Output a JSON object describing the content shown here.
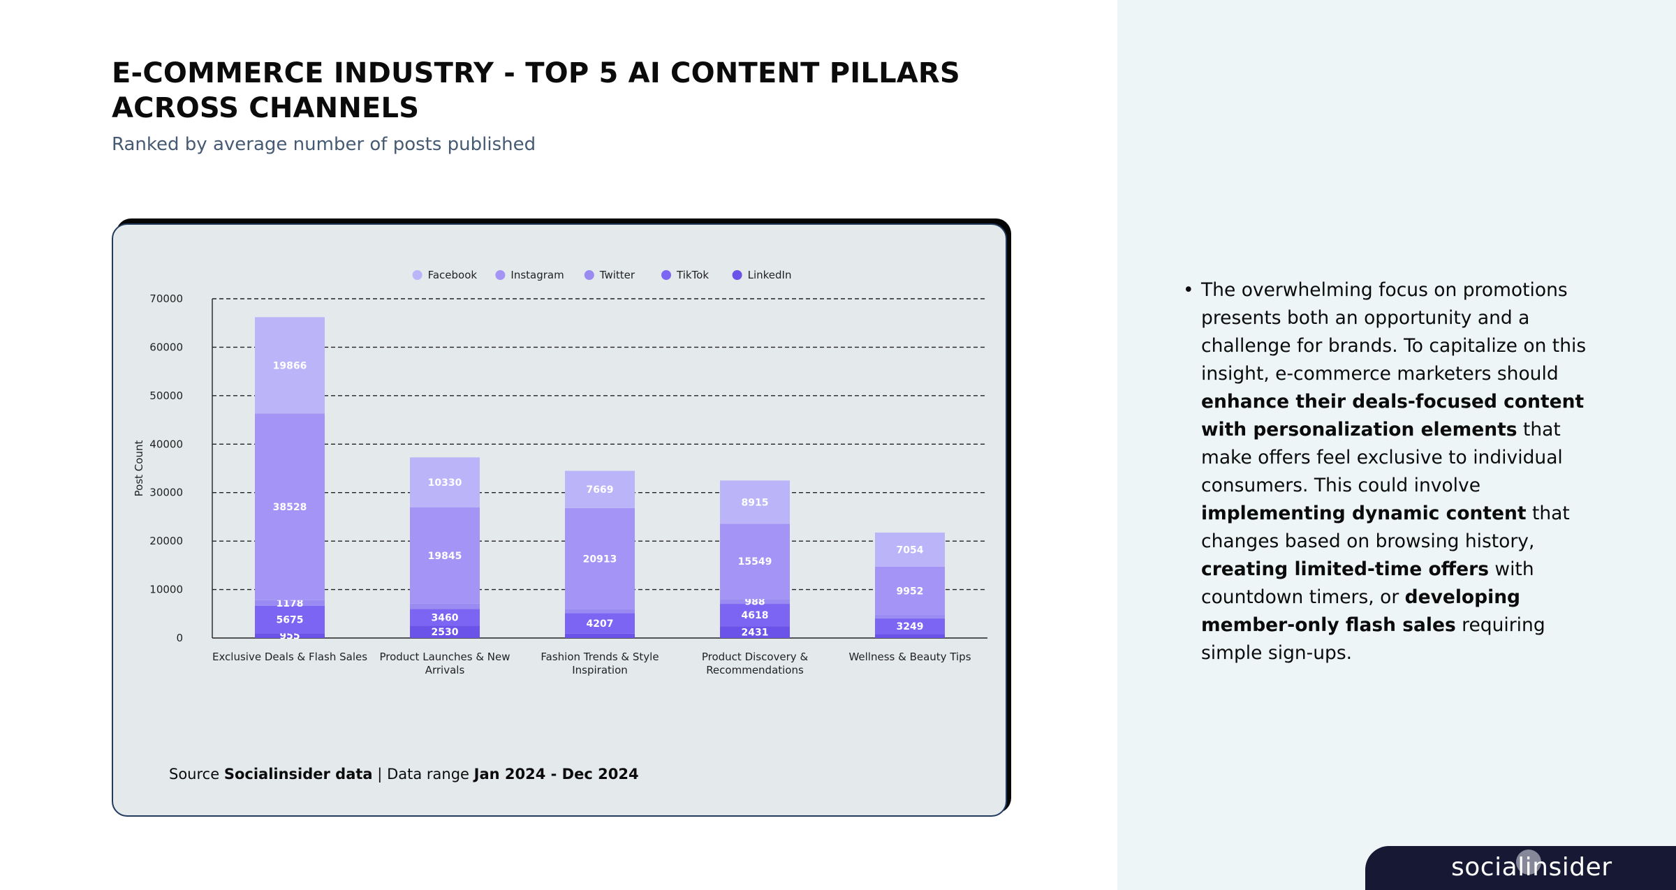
{
  "page": {
    "title": "E-COMMERCE INDUSTRY - TOP 5 AI CONTENT PILLARS ACROSS CHANNELS",
    "subtitle": "Ranked by average number of posts published"
  },
  "source": {
    "label": "Source",
    "name": "Socialinsider data",
    "separator": "|",
    "range_label": "Data range",
    "range": "Jan 2024 - Dec 2024"
  },
  "insight": {
    "bullet": "•",
    "parts": [
      {
        "text": "The overwhelming focus on promotions presents both an opportunity and a challenge for brands. To capitalize on this insight, e-commerce marketers should ",
        "bold": false
      },
      {
        "text": "enhance their deals-focused content with personalization elements",
        "bold": true
      },
      {
        "text": " that make offers feel exclusive to individual consumers. This could involve ",
        "bold": false
      },
      {
        "text": "implementing dynamic content",
        "bold": true
      },
      {
        "text": " that changes based on browsing history, ",
        "bold": false
      },
      {
        "text": "creating limited-time offers",
        "bold": true
      },
      {
        "text": " with countdown timers, or ",
        "bold": false
      },
      {
        "text": "developing member-only flash sales",
        "bold": true
      },
      {
        "text": " requiring simple sign-ups.",
        "bold": false
      }
    ]
  },
  "brand": {
    "name": "socialinsider"
  },
  "colors": {
    "page_bg": "#ffffff",
    "panel_bg": "#edf5f6",
    "card_bg": "#e4e9ec",
    "facebook": "#bcb4f8",
    "instagram": "#a394f6",
    "twitter": "#9a8bf2",
    "tiktok": "#7d65f4",
    "linkedin": "#6b52e8"
  },
  "chart_data": {
    "type": "bar",
    "stacked": true,
    "categories": [
      "Exclusive Deals & Flash Sales",
      "Product Launches & New Arrivals",
      "Fashion Trends & Style Inspiration",
      "Product Discovery & Recommendations",
      "Wellness & Beauty Tips"
    ],
    "category_label_lines": [
      [
        "Exclusive Deals & Flash Sales"
      ],
      [
        "Product Launches & New",
        "Arrivals"
      ],
      [
        "Fashion Trends & Style",
        "Inspiration"
      ],
      [
        "Product Discovery &",
        "Recommendations"
      ],
      [
        "Wellness & Beauty Tips"
      ]
    ],
    "series": [
      {
        "name": "LinkedIn",
        "color": "#6b52e8",
        "values": [
          955,
          2530,
          900,
          2431,
          800
        ]
      },
      {
        "name": "TikTok",
        "color": "#7d65f4",
        "values": [
          5675,
          3460,
          4207,
          4618,
          3249
        ]
      },
      {
        "name": "Twitter",
        "color": "#9a8bf2",
        "values": [
          1178,
          1100,
          800,
          988,
          700
        ]
      },
      {
        "name": "Instagram",
        "color": "#a394f6",
        "values": [
          38528,
          19845,
          20913,
          15549,
          9952
        ]
      },
      {
        "name": "Facebook",
        "color": "#bcb4f8",
        "values": [
          19866,
          10330,
          7669,
          8915,
          7054
        ]
      }
    ],
    "data_labels": {
      "LinkedIn": [
        "955",
        "2530",
        null,
        "2431",
        null
      ],
      "TikTok": [
        "5675",
        "3460",
        "4207",
        "4618",
        "3249"
      ],
      "Twitter": [
        "1178",
        null,
        null,
        "988",
        null
      ],
      "Instagram": [
        "38528",
        "19845",
        "20913",
        "15549",
        "9952"
      ],
      "Facebook": [
        "19866",
        "10330",
        "7669",
        "8915",
        "7054"
      ]
    },
    "legend_order": [
      "Facebook",
      "Instagram",
      "Twitter",
      "TikTok",
      "LinkedIn"
    ],
    "legend_position": "top-center",
    "y_ticks": [
      "0",
      "10000",
      "20000",
      "30000",
      "40000",
      "50000",
      "60000",
      "70000"
    ],
    "ylim": [
      0,
      70000
    ],
    "ylabel": "Post Count",
    "xlabel": "",
    "grid": "dashed horizontal"
  }
}
